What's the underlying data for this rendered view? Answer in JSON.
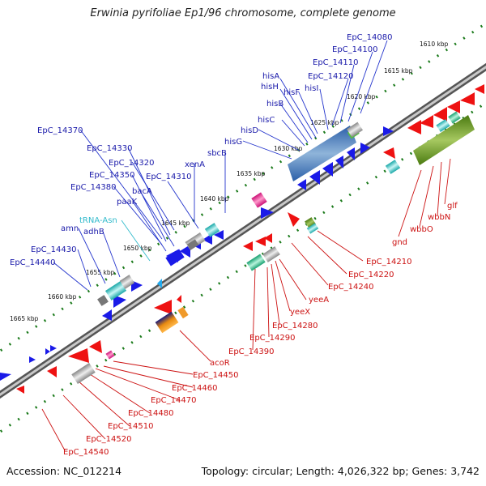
{
  "title": "Erwinia pyrifoliae Ep1/96 chromosome, complete genome",
  "accession": "Accession: NC_012214",
  "summary": "Topology: circular; Length: 4,026,322 bp; Genes: 3,742",
  "colors": {
    "forward_label": "#1a1aaa",
    "reverse_label": "#cc1111",
    "rna_label": "#33bbcc",
    "backbone": "#777777",
    "tick": "#1a7a1a"
  },
  "ticks": [
    "1610 kbp",
    "1615 kbp",
    "1620 kbp",
    "1625 kbp",
    "1630 kbp",
    "1635 kbp",
    "1640 kbp",
    "1645 kbp",
    "1650 kbp",
    "1655 kbp",
    "1660 kbp",
    "1665 kbp"
  ],
  "forward_labels": [
    "EpC_14080",
    "EpC_14100",
    "EpC_14110",
    "EpC_14120",
    "hisI",
    "hisF",
    "hisA",
    "hisH",
    "hisB",
    "hisC",
    "hisD",
    "hisG",
    "sbcB",
    "xenA",
    "EpC_14310",
    "EpC_14320",
    "EpC_14330",
    "EpC_14370",
    "EpC_14350",
    "EpC_14380",
    "bacA",
    "paaK",
    "tRNA-Asn",
    "adhB",
    "amn",
    "EpC_14430",
    "EpC_14440"
  ],
  "reverse_labels": [
    "glf",
    "wbbN",
    "wbbO",
    "gnd",
    "EpC_14210",
    "EpC_14220",
    "EpC_14240",
    "yeeA",
    "yeeX",
    "EpC_14280",
    "EpC_14290",
    "EpC_14390",
    "acoR",
    "EpC_14450",
    "EpC_14460",
    "EpC_14470",
    "EpC_14480",
    "EpC_14510",
    "EpC_14520",
    "EpC_14540"
  ]
}
